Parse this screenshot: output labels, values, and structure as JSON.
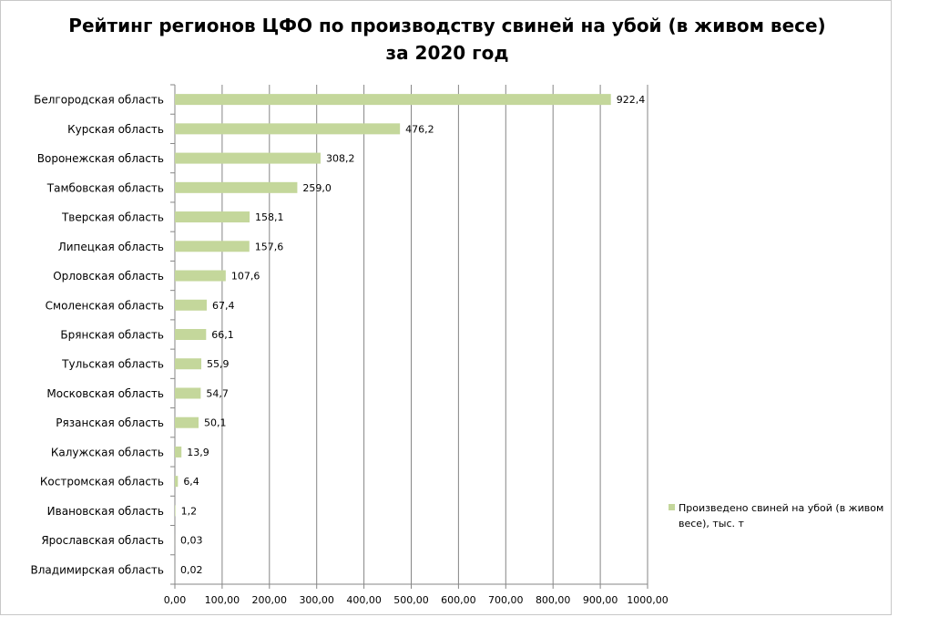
{
  "chart_data": {
    "type": "bar",
    "orientation": "horizontal",
    "title": "Рейтинг регионов ЦФО по производству свиней на убой (в живом весе) за 2020 год",
    "xlabel": "",
    "ylabel": "",
    "xlim": [
      0,
      1000
    ],
    "x_ticks": [
      "0,00",
      "100,00",
      "200,00",
      "300,00",
      "400,00",
      "500,00",
      "600,00",
      "700,00",
      "800,00",
      "900,00",
      "1000,00"
    ],
    "grid": "vertical major gridlines",
    "legend_position": "right",
    "categories": [
      "Белгородская область",
      "Курская область",
      "Воронежская область",
      "Тамбовская область",
      "Тверская область",
      "Липецкая область",
      "Орловская область",
      "Смоленская область",
      "Брянская область",
      "Тульская область",
      "Московская область",
      "Рязанская область",
      "Калужская область",
      "Костромская область",
      "Ивановская область",
      "Ярославская область",
      "Владимирская область"
    ],
    "series": [
      {
        "name": "Произведено свиней на убой (в живом весе), тыс. т",
        "color": "#c4d79b",
        "values": [
          922.4,
          476.2,
          308.2,
          259.0,
          158.1,
          157.6,
          107.6,
          67.4,
          66.1,
          55.9,
          54.7,
          50.1,
          13.9,
          6.4,
          1.2,
          0.03,
          0.02
        ],
        "labels": [
          "922,4",
          "476,2",
          "308,2",
          "259,0",
          "158,1",
          "157,6",
          "107,6",
          "67,4",
          "66,1",
          "55,9",
          "54,7",
          "50,1",
          "13,9",
          "6,4",
          "1,2",
          "0,03",
          "0,02"
        ]
      }
    ]
  },
  "legend": {
    "label_line1": "Произведено  свиней  на убой (в живом",
    "label_line2": "весе), тыс. т"
  },
  "colors": {
    "bar": "#c4d79b",
    "grid": "#868686",
    "axis": "#868686",
    "text": "#000000"
  }
}
